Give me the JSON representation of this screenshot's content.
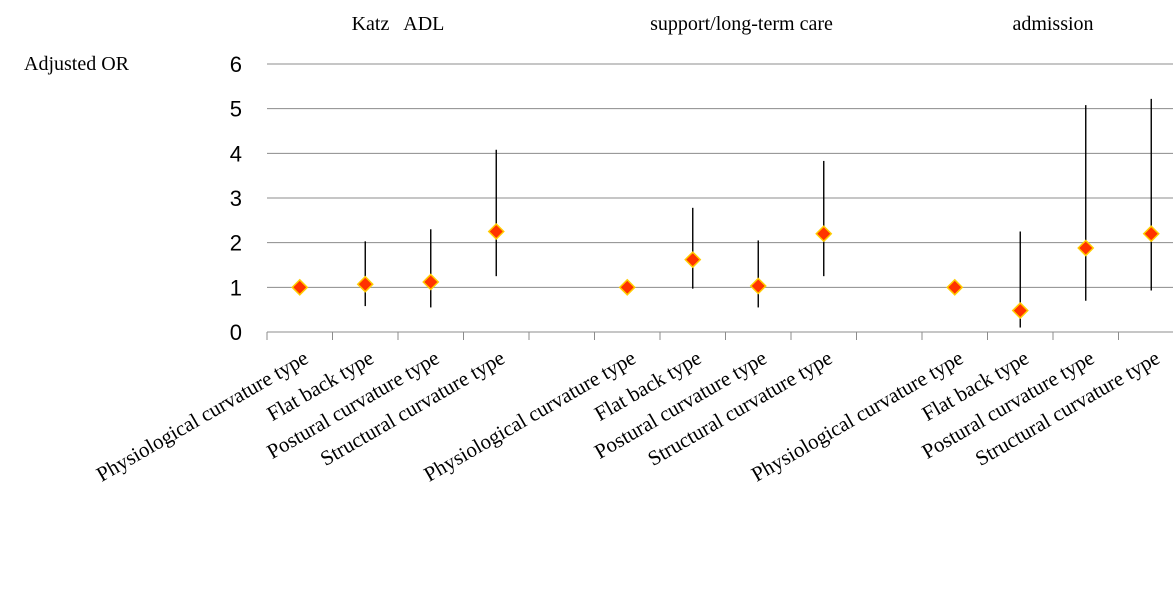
{
  "chart_data": {
    "type": "scatter",
    "ylabel": "Adjusted OR",
    "ylim": [
      0,
      6
    ],
    "yticks": [
      "0",
      "1",
      "2",
      "3",
      "4",
      "5",
      "6"
    ],
    "grid": true,
    "marker_color": "#ff3300",
    "marker_edge_color": "#ffcc00",
    "groups": [
      {
        "label": "Katz   ADL",
        "categories": [
          "Physiological curvature type",
          "Flat back type",
          "Postural curvature type",
          "Structural curvature type"
        ],
        "or": [
          1.0,
          1.07,
          1.12,
          2.25
        ],
        "lower": [
          1.0,
          0.58,
          0.55,
          1.25
        ],
        "upper": [
          1.0,
          2.03,
          2.3,
          4.08
        ]
      },
      {
        "label": "support/long-term care",
        "categories": [
          "Physiological curvature type",
          "Flat back type",
          "Postural curvature type",
          "Structural curvature type"
        ],
        "or": [
          1.0,
          1.62,
          1.03,
          2.2
        ],
        "lower": [
          1.0,
          0.97,
          0.55,
          1.25
        ],
        "upper": [
          1.0,
          2.78,
          2.05,
          3.83
        ]
      },
      {
        "label": "admission",
        "categories": [
          "Physiological curvature type",
          "Flat back type",
          "Postural curvature type",
          "Structural curvature type"
        ],
        "or": [
          1.0,
          0.48,
          1.88,
          2.2
        ],
        "lower": [
          1.0,
          0.1,
          0.7,
          0.93
        ],
        "upper": [
          1.0,
          2.25,
          5.08,
          5.22
        ]
      }
    ]
  }
}
